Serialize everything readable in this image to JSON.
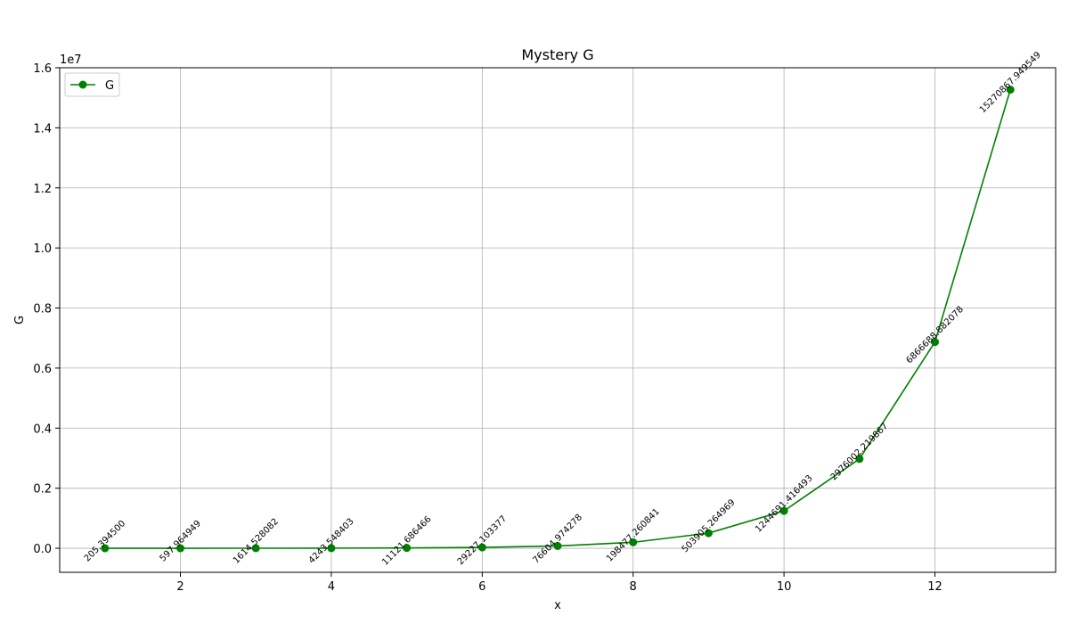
{
  "chart_data": {
    "type": "line",
    "title": "Mystery G",
    "xlabel": "x",
    "ylabel": "G",
    "y_scale_label": "1e7",
    "xlim": [
      0.4,
      13.6
    ],
    "ylim": [
      -0.08,
      1.6
    ],
    "y_scale_factor": 10000000,
    "x_ticks": [
      2,
      4,
      6,
      8,
      10,
      12
    ],
    "y_ticks": [
      0.0,
      0.2,
      0.4,
      0.6,
      0.8,
      1.0,
      1.2,
      1.4,
      1.6
    ],
    "y_tick_labels": [
      "0.0",
      "0.2",
      "0.4",
      "0.6",
      "0.8",
      "1.0",
      "1.2",
      "1.4",
      "1.6"
    ],
    "x_tick_labels": [
      "2",
      "4",
      "6",
      "8",
      "10",
      "12"
    ],
    "grid": true,
    "legend_position": "top-left",
    "series": [
      {
        "name": "G",
        "color": "#008000",
        "marker": "circle",
        "x": [
          1,
          2,
          3,
          4,
          5,
          6,
          7,
          8,
          9,
          10,
          11,
          12,
          13
        ],
        "y": [
          205.3945,
          597.964949,
          1614.528082,
          4243.548403,
          11121.686466,
          29227.103377,
          76604.974278,
          198477.260841,
          503905.264969,
          1244691.416493,
          2976002.219867,
          6866688.882078,
          15270867.949549
        ],
        "labels": [
          "205.394500",
          "597.964949",
          "1614.528082",
          "4243.548403",
          "11121.686466",
          "29227.103377",
          "76604.974278",
          "198477.260841",
          "503905.264969",
          "1244691.416493",
          "2976002.219867",
          "6866688.882078",
          "15270867.949549"
        ]
      }
    ]
  }
}
